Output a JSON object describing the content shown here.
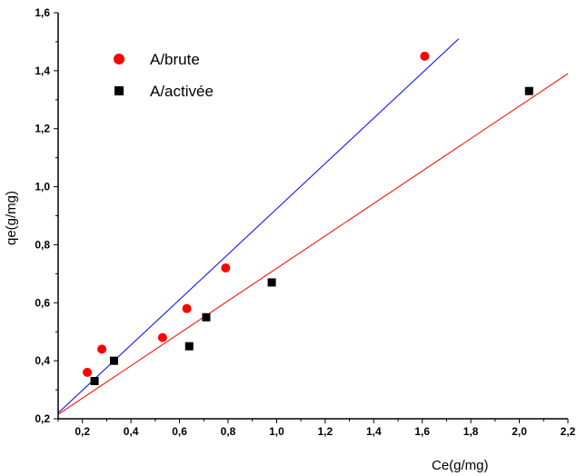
{
  "chart_data": {
    "type": "scatter",
    "xlabel": "Ce(g/mg)",
    "ylabel": "qe(g/mg)",
    "xlim": [
      0.1,
      2.2
    ],
    "ylim": [
      0.2,
      1.6
    ],
    "x_ticks": [
      "0,2",
      "0,4",
      "0,6",
      "0,8",
      "1,0",
      "1,2",
      "1,4",
      "1,6",
      "1,8",
      "2,0",
      "2,2"
    ],
    "y_ticks": [
      "0,2",
      "0,4",
      "0,6",
      "0,8",
      "1,0",
      "1,2",
      "1,4",
      "1,6"
    ],
    "grid": false,
    "legend_position": "top-left",
    "series": [
      {
        "name": "A/brute",
        "marker": "circle",
        "color": "#ff0000",
        "fit_color": "#0000ff",
        "points": [
          {
            "x": 0.22,
            "y": 0.36
          },
          {
            "x": 0.28,
            "y": 0.44
          },
          {
            "x": 0.53,
            "y": 0.48
          },
          {
            "x": 0.63,
            "y": 0.58
          },
          {
            "x": 0.79,
            "y": 0.72
          },
          {
            "x": 1.61,
            "y": 1.45
          }
        ],
        "fit_line": [
          {
            "x": 0.1,
            "y": 0.22
          },
          {
            "x": 1.75,
            "y": 1.51
          }
        ]
      },
      {
        "name": "A/activée",
        "marker": "square",
        "color": "#000000",
        "fit_color": "#ff0000",
        "points": [
          {
            "x": 0.25,
            "y": 0.33
          },
          {
            "x": 0.33,
            "y": 0.4
          },
          {
            "x": 0.64,
            "y": 0.45
          },
          {
            "x": 0.71,
            "y": 0.55
          },
          {
            "x": 0.98,
            "y": 0.67
          },
          {
            "x": 2.04,
            "y": 1.33
          }
        ],
        "fit_line": [
          {
            "x": 0.1,
            "y": 0.215
          },
          {
            "x": 2.2,
            "y": 1.39
          }
        ]
      }
    ]
  }
}
